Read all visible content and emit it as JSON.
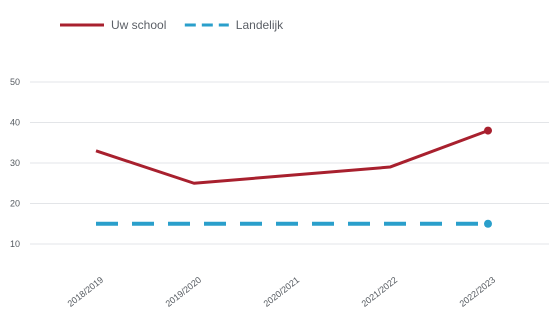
{
  "chart_data": {
    "type": "line",
    "categories": [
      "2018/2019",
      "2019/2020",
      "2020/2021",
      "2021/2022",
      "2022/2023"
    ],
    "series": [
      {
        "name": "Uw school",
        "values": [
          33,
          25,
          27,
          29,
          38
        ],
        "color": "#a8202e",
        "style": "solid"
      },
      {
        "name": "Landelijk",
        "values": [
          15,
          15,
          15,
          15,
          15
        ],
        "color": "#2a9fcb",
        "style": "dashed"
      }
    ],
    "y_ticks": [
      "10",
      "20",
      "30",
      "40",
      "50"
    ],
    "ylim": [
      7,
      51
    ],
    "grid": true,
    "legend_position": "top-left"
  }
}
